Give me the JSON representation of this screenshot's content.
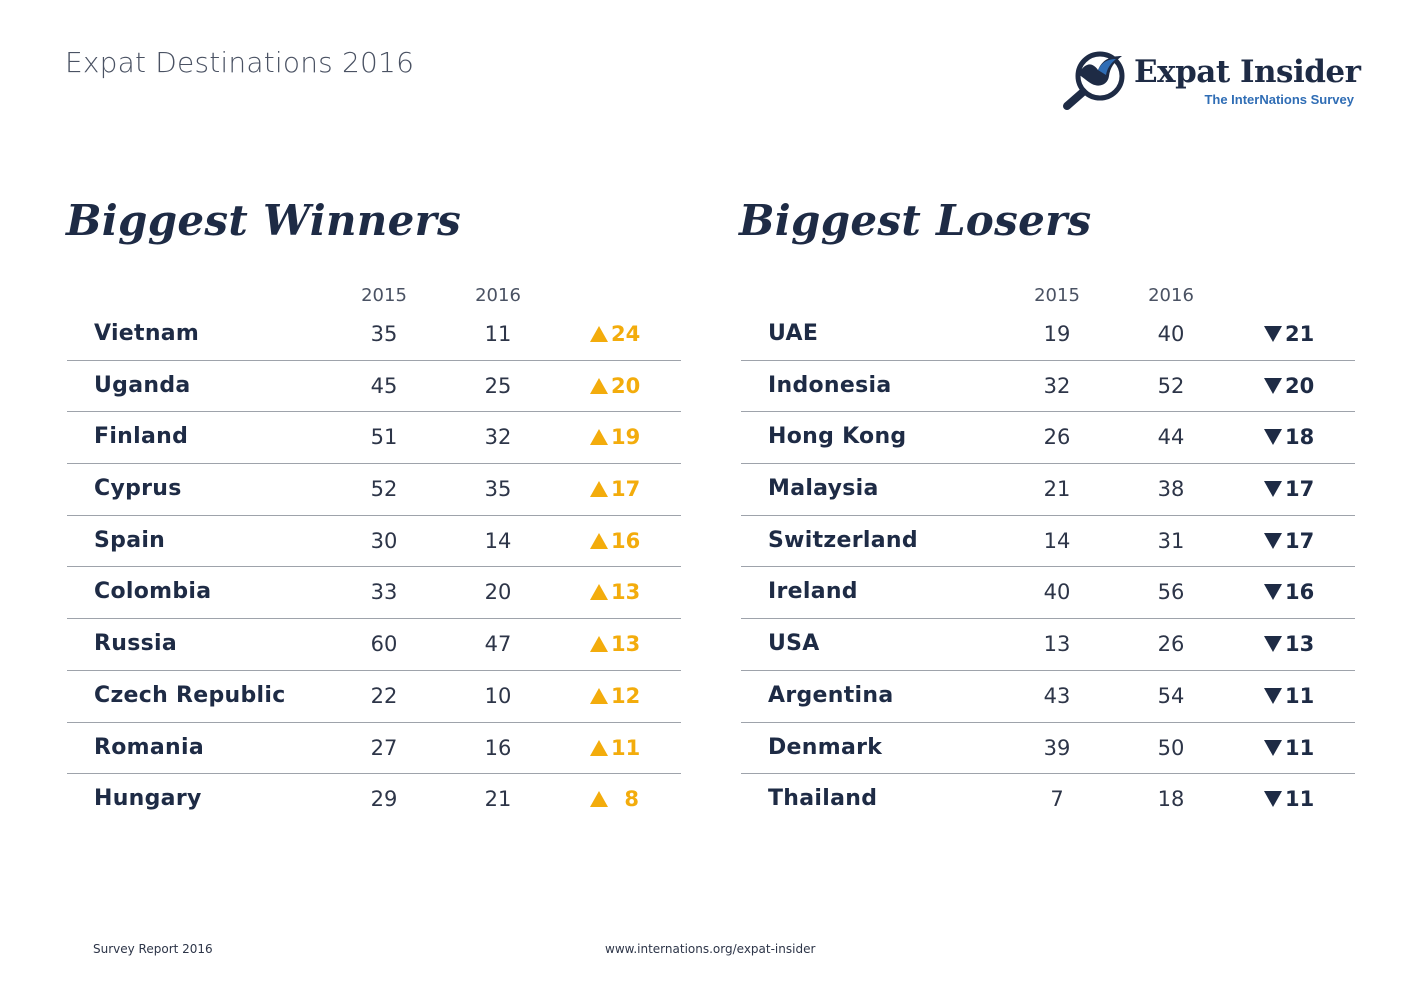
{
  "header": {
    "title": "Expat Destinations 2016",
    "brand_name": "Expat Insider",
    "brand_sub": "The InterNations Survey"
  },
  "colors": {
    "navy": "#1e2b45",
    "gold": "#f3ac0c",
    "blue": "#2f6db5"
  },
  "icons": {
    "logo": "magnifier-bird-icon",
    "up": "triangle-up-icon",
    "down": "triangle-down-icon"
  },
  "winners": {
    "title": "Biggest Winners",
    "col_2015": "2015",
    "col_2016": "2016",
    "rows": [
      {
        "country": "Vietnam",
        "y2015": "35",
        "y2016": "11",
        "change": "24"
      },
      {
        "country": "Uganda",
        "y2015": "45",
        "y2016": "25",
        "change": "20"
      },
      {
        "country": "Finland",
        "y2015": "51",
        "y2016": "32",
        "change": "19"
      },
      {
        "country": "Cyprus",
        "y2015": "52",
        "y2016": "35",
        "change": "17"
      },
      {
        "country": "Spain",
        "y2015": "30",
        "y2016": "14",
        "change": "16"
      },
      {
        "country": "Colombia",
        "y2015": "33",
        "y2016": "20",
        "change": "13"
      },
      {
        "country": "Russia",
        "y2015": "60",
        "y2016": "47",
        "change": "13"
      },
      {
        "country": "Czech Republic",
        "y2015": "22",
        "y2016": "10",
        "change": "12"
      },
      {
        "country": "Romania",
        "y2015": "27",
        "y2016": "16",
        "change": "11"
      },
      {
        "country": "Hungary",
        "y2015": "29",
        "y2016": "21",
        "change": "8"
      }
    ]
  },
  "losers": {
    "title": "Biggest Losers",
    "col_2015": "2015",
    "col_2016": "2016",
    "rows": [
      {
        "country": "UAE",
        "y2015": "19",
        "y2016": "40",
        "change": "21"
      },
      {
        "country": "Indonesia",
        "y2015": "32",
        "y2016": "52",
        "change": "20"
      },
      {
        "country": "Hong Kong",
        "y2015": "26",
        "y2016": "44",
        "change": "18"
      },
      {
        "country": "Malaysia",
        "y2015": "21",
        "y2016": "38",
        "change": "17"
      },
      {
        "country": "Switzerland",
        "y2015": "14",
        "y2016": "31",
        "change": "17"
      },
      {
        "country": "Ireland",
        "y2015": "40",
        "y2016": "56",
        "change": "16"
      },
      {
        "country": "USA",
        "y2015": "13",
        "y2016": "26",
        "change": "13"
      },
      {
        "country": "Argentina",
        "y2015": "43",
        "y2016": "54",
        "change": "11"
      },
      {
        "country": "Denmark",
        "y2015": "39",
        "y2016": "50",
        "change": "11"
      },
      {
        "country": "Thailand",
        "y2015": "7",
        "y2016": "18",
        "change": "11"
      }
    ]
  },
  "footer": {
    "left": "Survey Report 2016",
    "url": "www.internations.org/expat-insider"
  }
}
